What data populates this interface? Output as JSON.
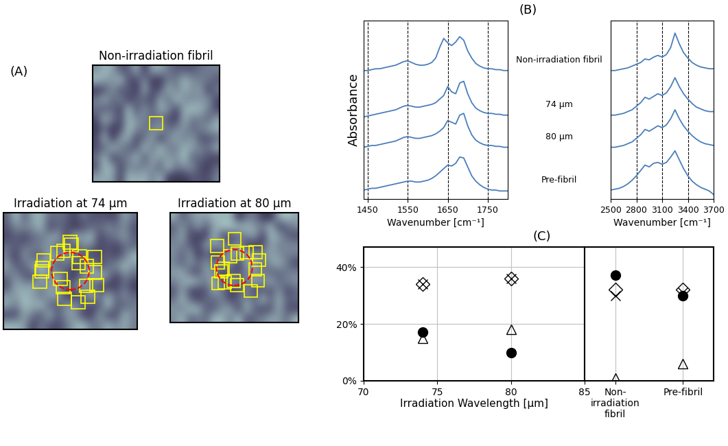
{
  "panel_labels": [
    "(A)",
    "(B)",
    "(C)"
  ],
  "images": [
    {
      "title": "Non-irradiation fibril"
    },
    {
      "title": "Irradiation at 74 μm"
    },
    {
      "title": "Irradiation at 80 μm"
    }
  ],
  "chart_data": [
    {
      "type": "line",
      "ylabel": "Absorbance",
      "xlabel": "Wavenumber [cm⁻¹]",
      "x": [
        1440,
        1450,
        1460,
        1470,
        1480,
        1490,
        1500,
        1510,
        1520,
        1530,
        1540,
        1550,
        1560,
        1570,
        1580,
        1590,
        1600,
        1610,
        1620,
        1630,
        1640,
        1650,
        1660,
        1670,
        1680,
        1690,
        1700,
        1710,
        1720,
        1730,
        1740,
        1750,
        1760,
        1770,
        1780,
        1790,
        1800
      ],
      "xlim": [
        1440,
        1800
      ],
      "xticks": [
        1450,
        1550,
        1650,
        1750
      ],
      "ylim": [
        0,
        10
      ],
      "grid": true,
      "tick_labels": "x",
      "series": [
        {
          "name": "Non-irradiation fibril",
          "color": "#4a7ebb",
          "values": [
            7.2,
            7.2,
            7.25,
            7.3,
            7.3,
            7.35,
            7.4,
            7.45,
            7.5,
            7.6,
            7.7,
            7.75,
            7.65,
            7.55,
            7.5,
            7.5,
            7.55,
            7.65,
            7.9,
            8.5,
            9.0,
            8.75,
            8.6,
            8.8,
            9.1,
            8.9,
            8.3,
            7.9,
            7.6,
            7.45,
            7.35,
            7.3,
            7.3,
            7.25,
            7.25,
            7.2,
            7.2
          ]
        },
        {
          "name": "74 μm",
          "color": "#4a7ebb",
          "values": [
            4.6,
            4.65,
            4.7,
            4.75,
            4.8,
            4.85,
            4.9,
            4.95,
            5.0,
            5.1,
            5.2,
            5.25,
            5.2,
            5.15,
            5.15,
            5.2,
            5.25,
            5.3,
            5.4,
            5.6,
            5.8,
            6.3,
            6.0,
            5.9,
            6.5,
            6.6,
            5.9,
            5.4,
            5.1,
            4.95,
            4.85,
            4.8,
            4.8,
            4.75,
            4.75,
            4.7,
            4.7
          ]
        },
        {
          "name": "80 μm",
          "color": "#4a7ebb",
          "values": [
            2.9,
            2.95,
            3.0,
            3.0,
            3.05,
            3.1,
            3.15,
            3.2,
            3.25,
            3.35,
            3.45,
            3.5,
            3.45,
            3.4,
            3.4,
            3.45,
            3.5,
            3.55,
            3.65,
            3.8,
            4.0,
            4.4,
            4.3,
            4.2,
            4.7,
            4.8,
            4.1,
            3.6,
            3.3,
            3.15,
            3.05,
            3.0,
            3.0,
            2.95,
            2.95,
            2.9,
            2.9
          ]
        },
        {
          "name": "Pre-fibril",
          "color": "#4a7ebb",
          "values": [
            0.5,
            0.55,
            0.6,
            0.6,
            0.65,
            0.7,
            0.75,
            0.8,
            0.85,
            0.9,
            0.95,
            1.0,
            1.0,
            0.95,
            0.95,
            1.0,
            1.05,
            1.15,
            1.3,
            1.5,
            1.7,
            1.9,
            1.85,
            2.0,
            2.35,
            2.3,
            1.8,
            1.3,
            1.0,
            0.8,
            0.65,
            0.55,
            0.5,
            0.5,
            0.45,
            0.45,
            0.45
          ]
        }
      ]
    },
    {
      "type": "line",
      "xlabel": "Wavenumber [cm⁻¹]",
      "x": [
        2500,
        2550,
        2600,
        2650,
        2700,
        2750,
        2800,
        2850,
        2900,
        2950,
        3000,
        3050,
        3100,
        3150,
        3200,
        3250,
        3300,
        3350,
        3400,
        3450,
        3500,
        3550,
        3600,
        3650,
        3700
      ],
      "xlim": [
        2500,
        3700
      ],
      "xticks": [
        2500,
        2800,
        3100,
        3400,
        3700
      ],
      "ylim": [
        0,
        10
      ],
      "grid": true,
      "tick_labels": "x",
      "series": [
        {
          "color": "#4a7ebb",
          "values": [
            7.2,
            7.2,
            7.25,
            7.3,
            7.35,
            7.45,
            7.55,
            7.65,
            7.85,
            7.8,
            7.95,
            8.05,
            7.95,
            8.1,
            8.5,
            9.3,
            8.7,
            8.2,
            7.9,
            7.65,
            7.5,
            7.4,
            7.35,
            7.3,
            7.3
          ]
        },
        {
          "color": "#4a7ebb",
          "values": [
            4.7,
            4.7,
            4.75,
            4.8,
            4.9,
            5.0,
            5.2,
            5.4,
            5.7,
            5.6,
            5.75,
            5.9,
            5.8,
            5.95,
            6.3,
            6.8,
            6.3,
            5.9,
            5.6,
            5.35,
            5.15,
            5.05,
            4.95,
            4.9,
            4.9
          ]
        },
        {
          "color": "#4a7ebb",
          "values": [
            2.9,
            2.9,
            2.95,
            3.0,
            3.1,
            3.2,
            3.4,
            3.6,
            3.9,
            3.8,
            3.95,
            4.1,
            4.0,
            4.15,
            4.5,
            5.0,
            4.5,
            4.1,
            3.8,
            3.55,
            3.35,
            3.2,
            3.1,
            3.05,
            3.0
          ]
        },
        {
          "color": "#4a7ebb",
          "values": [
            0.5,
            0.55,
            0.6,
            0.7,
            0.85,
            1.05,
            1.3,
            1.6,
            1.9,
            1.8,
            2.0,
            2.05,
            1.95,
            2.05,
            2.35,
            2.7,
            2.2,
            1.7,
            1.3,
            1.0,
            0.8,
            0.65,
            0.55,
            0.45,
            0.25
          ]
        }
      ]
    },
    {
      "type": "scatter",
      "xlabel": "Irradiation Wavelength [μm]",
      "x": [
        74,
        80
      ],
      "xlim": [
        70,
        85
      ],
      "xticks": [
        70,
        75,
        80,
        85
      ],
      "ylim": [
        0,
        47
      ],
      "yticks": [
        {
          "value": 0,
          "label": "0%"
        },
        {
          "value": 20,
          "label": "20%"
        },
        {
          "value": 40,
          "label": "40%"
        }
      ],
      "grid": true,
      "series": [
        {
          "marker": "diamond",
          "color": "#000000",
          "values": [
            34,
            36
          ]
        },
        {
          "marker": "x",
          "color": "#000000",
          "values": [
            34,
            36
          ]
        },
        {
          "marker": "circle",
          "color": "#000000",
          "values": [
            17,
            10
          ]
        },
        {
          "marker": "triangle",
          "color": "#000000",
          "values": [
            15,
            18
          ]
        }
      ]
    },
    {
      "type": "scatter",
      "categories": [
        "Non-irradiation fibril",
        "Pre-fibril"
      ],
      "ylim": [
        0,
        47
      ],
      "grid": true,
      "tick_labels": "x",
      "series": [
        {
          "marker": "diamond",
          "color": "#000000",
          "values": [
            32,
            32
          ]
        },
        {
          "marker": "x",
          "color": "#000000",
          "values": [
            30,
            31
          ]
        },
        {
          "marker": "circle",
          "color": "#000000",
          "values": [
            37,
            30
          ]
        },
        {
          "marker": "triangle",
          "color": "#000000",
          "values": [
            1,
            6
          ]
        }
      ]
    }
  ]
}
